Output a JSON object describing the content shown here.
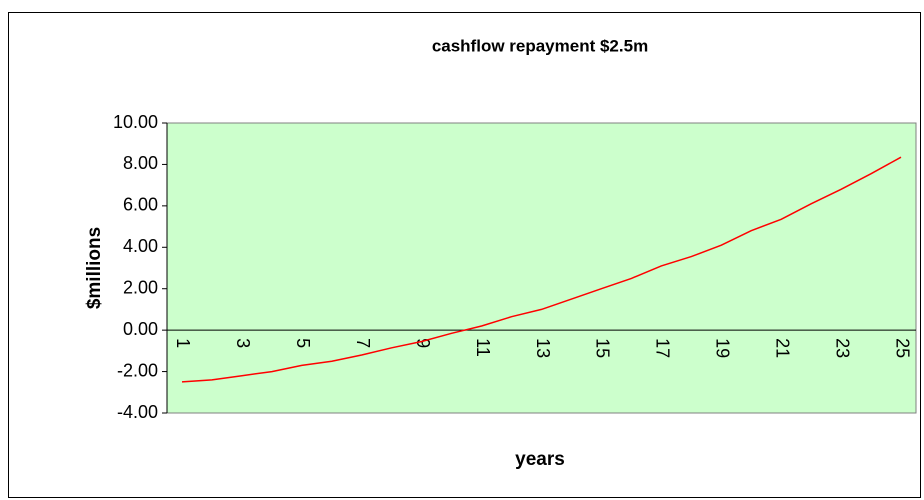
{
  "chart_data": {
    "type": "line",
    "title": "cashflow repayment $2.5m",
    "x_label": "years",
    "y_label": "$millions",
    "categories": [
      1,
      null,
      3,
      null,
      5,
      null,
      7,
      null,
      9,
      null,
      11,
      null,
      13,
      null,
      15,
      null,
      17,
      null,
      19,
      null,
      21,
      null,
      23,
      null,
      25
    ],
    "series": [
      {
        "name": "cashflow",
        "color": "#ff0000",
        "values": [
          -2.5,
          -2.4,
          -2.2,
          -2.0,
          -1.7,
          -1.5,
          -1.2,
          -0.85,
          -0.55,
          -0.15,
          0.2,
          0.65,
          1.0,
          1.5,
          2.0,
          2.5,
          3.1,
          3.55,
          4.1,
          4.8,
          5.35,
          6.1,
          6.8,
          7.55,
          8.35
        ]
      }
    ],
    "ylim": [
      -4,
      10
    ],
    "yticks": [
      {
        "value": -4,
        "label": "-4.00"
      },
      {
        "value": -2,
        "label": "-2.00"
      },
      {
        "value": 0,
        "label": "0.00"
      },
      {
        "value": 2,
        "label": "2.00"
      },
      {
        "value": 4,
        "label": "4.00"
      },
      {
        "value": 6,
        "label": "6.00"
      },
      {
        "value": 8,
        "label": "8.00"
      },
      {
        "value": 10,
        "label": "10.00"
      }
    ],
    "plot_background": "#ccffcc",
    "legend": false
  }
}
